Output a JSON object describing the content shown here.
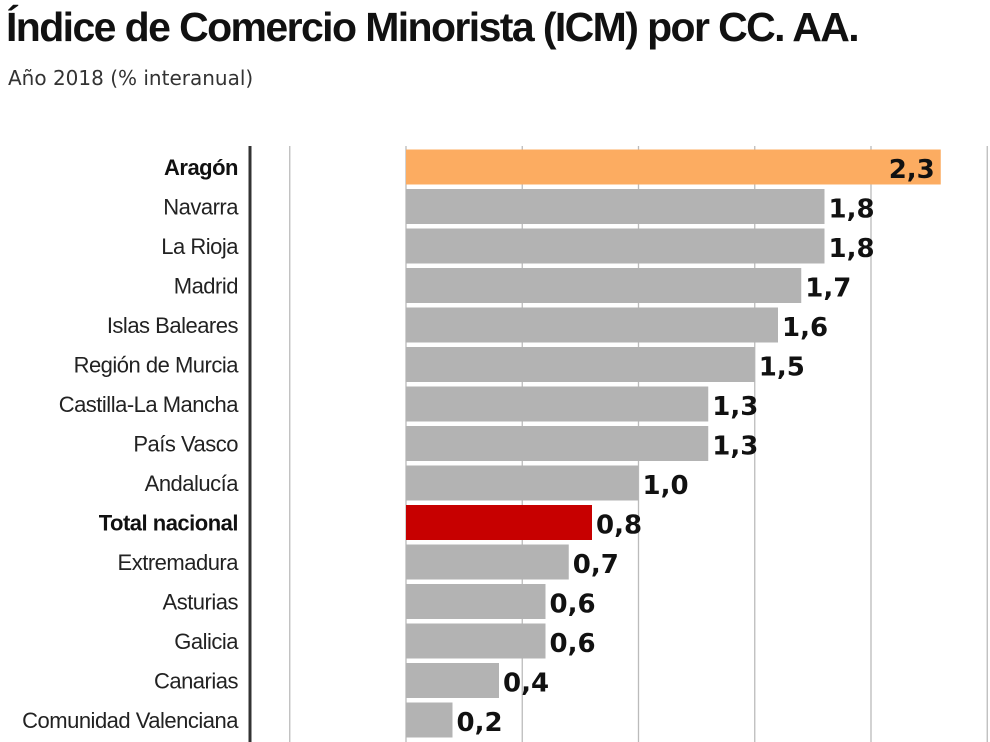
{
  "title": "Índice de Comercio Minorista (ICM) por CC. AA.",
  "subtitle": "Año 2018 (% interanual)",
  "colors": {
    "bar_default": "#b3b3b3",
    "bar_highlight": "#fcac61",
    "bar_total": "#c70000",
    "axis": "#333333",
    "grid": "#bbbbbb"
  },
  "chart_data": {
    "type": "bar",
    "orientation": "horizontal",
    "categories": [
      "Aragón",
      "Navarra",
      "La Rioja",
      "Madrid",
      "Islas Baleares",
      "Región de Murcia",
      "Castilla-La Mancha",
      "País Vasco",
      "Andalucía",
      "Total nacional",
      "Extremadura",
      "Asturias",
      "Galicia",
      "Canarias",
      "Comunidad Valenciana"
    ],
    "values": [
      2.3,
      1.8,
      1.8,
      1.7,
      1.6,
      1.5,
      1.3,
      1.3,
      1.0,
      0.8,
      0.7,
      0.6,
      0.6,
      0.4,
      0.2
    ],
    "value_labels": [
      "2,3",
      "1,8",
      "1,8",
      "1,7",
      "1,6",
      "1,5",
      "1,3",
      "1,3",
      "1,0",
      "0,8",
      "0,7",
      "0,6",
      "0,6",
      "0,4",
      "0,2"
    ],
    "highlight": [
      "Aragón"
    ],
    "bold_categories": [
      "Aragón",
      "Total nacional"
    ],
    "total_category": "Total nacional",
    "title": "Índice de Comercio Minorista (ICM) por CC. AA.",
    "subtitle": "Año 2018 (% interanual)",
    "xlim": [
      -0.5,
      2.5
    ],
    "gridlines": [
      -0.5,
      0.0,
      0.5,
      1.0,
      1.5,
      2.0,
      2.5
    ],
    "grid": true,
    "legend": "none"
  }
}
